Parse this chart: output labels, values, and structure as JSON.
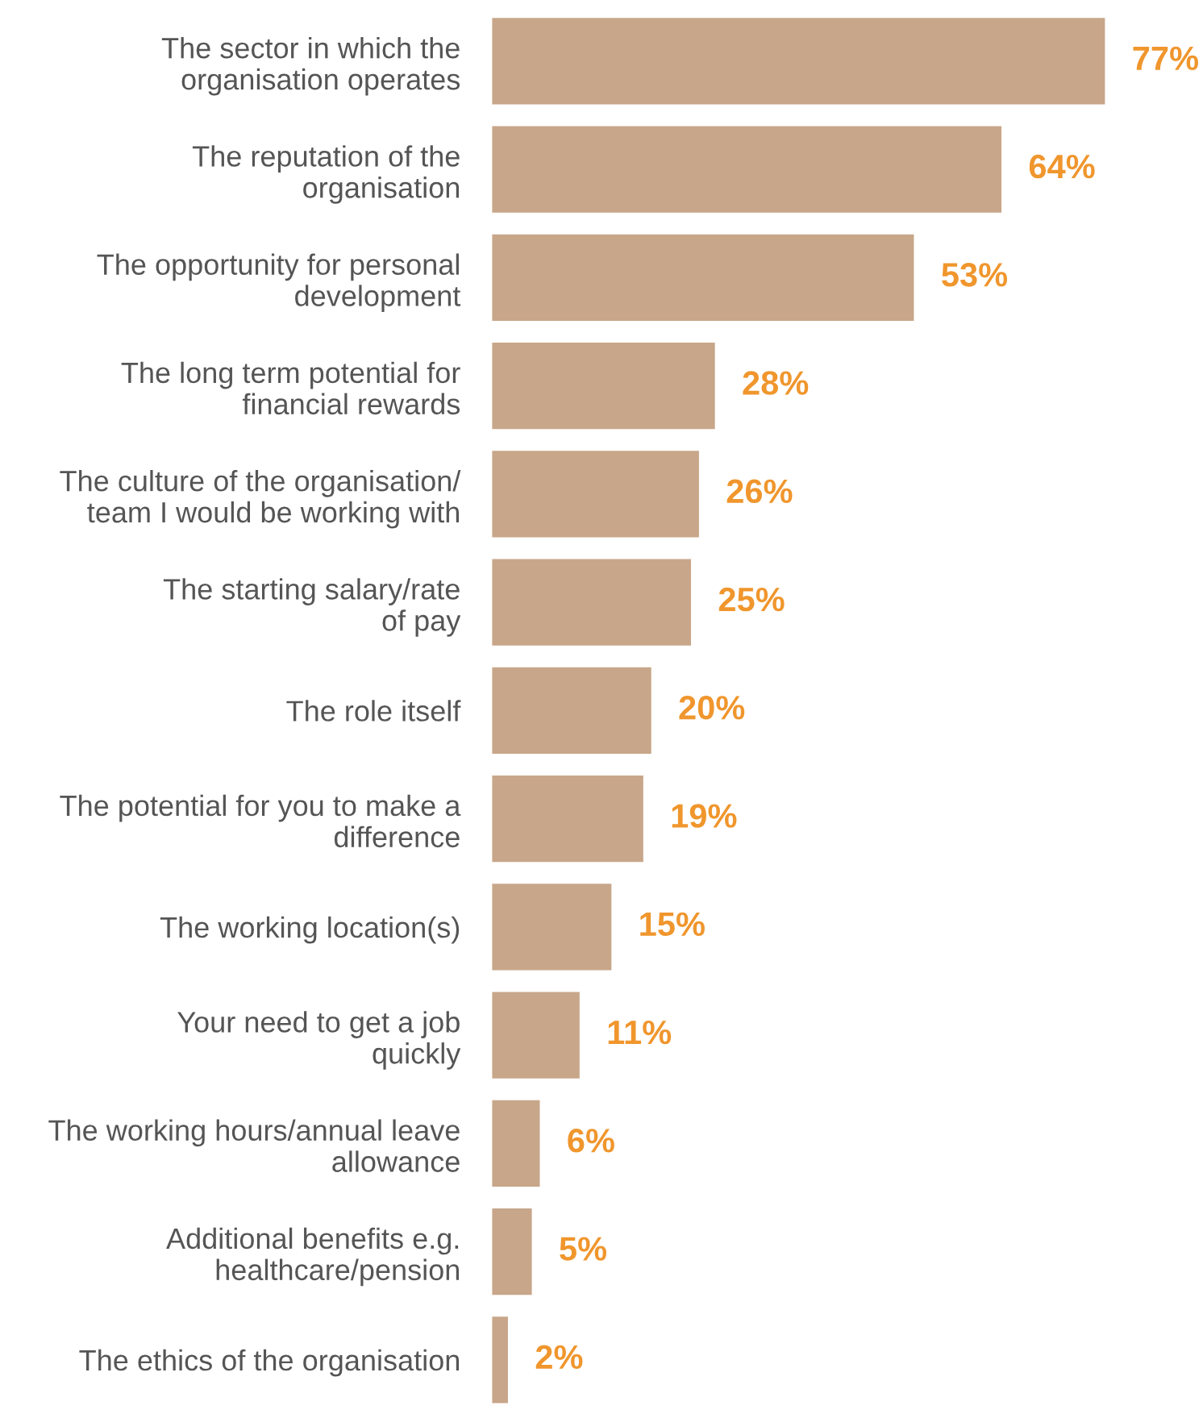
{
  "chart_data": {
    "type": "bar",
    "orientation": "horizontal",
    "categories": [
      "The sector in which the\norganisation operates",
      "The reputation of the\norganisation",
      "The opportunity for personal\ndevelopment",
      "The long term potential for\nfinancial rewards",
      "The culture of the organisation/\nteam I would be working with",
      "The starting salary/rate\nof pay",
      "The role itself",
      "The potential for you to make a\ndifference",
      "The working location(s)",
      "Your need to get a job\nquickly",
      "The working hours/annual leave\nallowance",
      "Additional benefits e.g.\nhealthcare/pension",
      "The ethics of the organisation"
    ],
    "series": [
      {
        "color": "#c8a689",
        "values": [
          77,
          64,
          53,
          28,
          26,
          25,
          20,
          19,
          15,
          11,
          6,
          5,
          2
        ],
        "value_labels": [
          "77%",
          "64%",
          "53%",
          "28%",
          "26%",
          "25%",
          "20%",
          "19%",
          "15%",
          "11%",
          "6%",
          "5%",
          "2%"
        ]
      }
    ]
  }
}
